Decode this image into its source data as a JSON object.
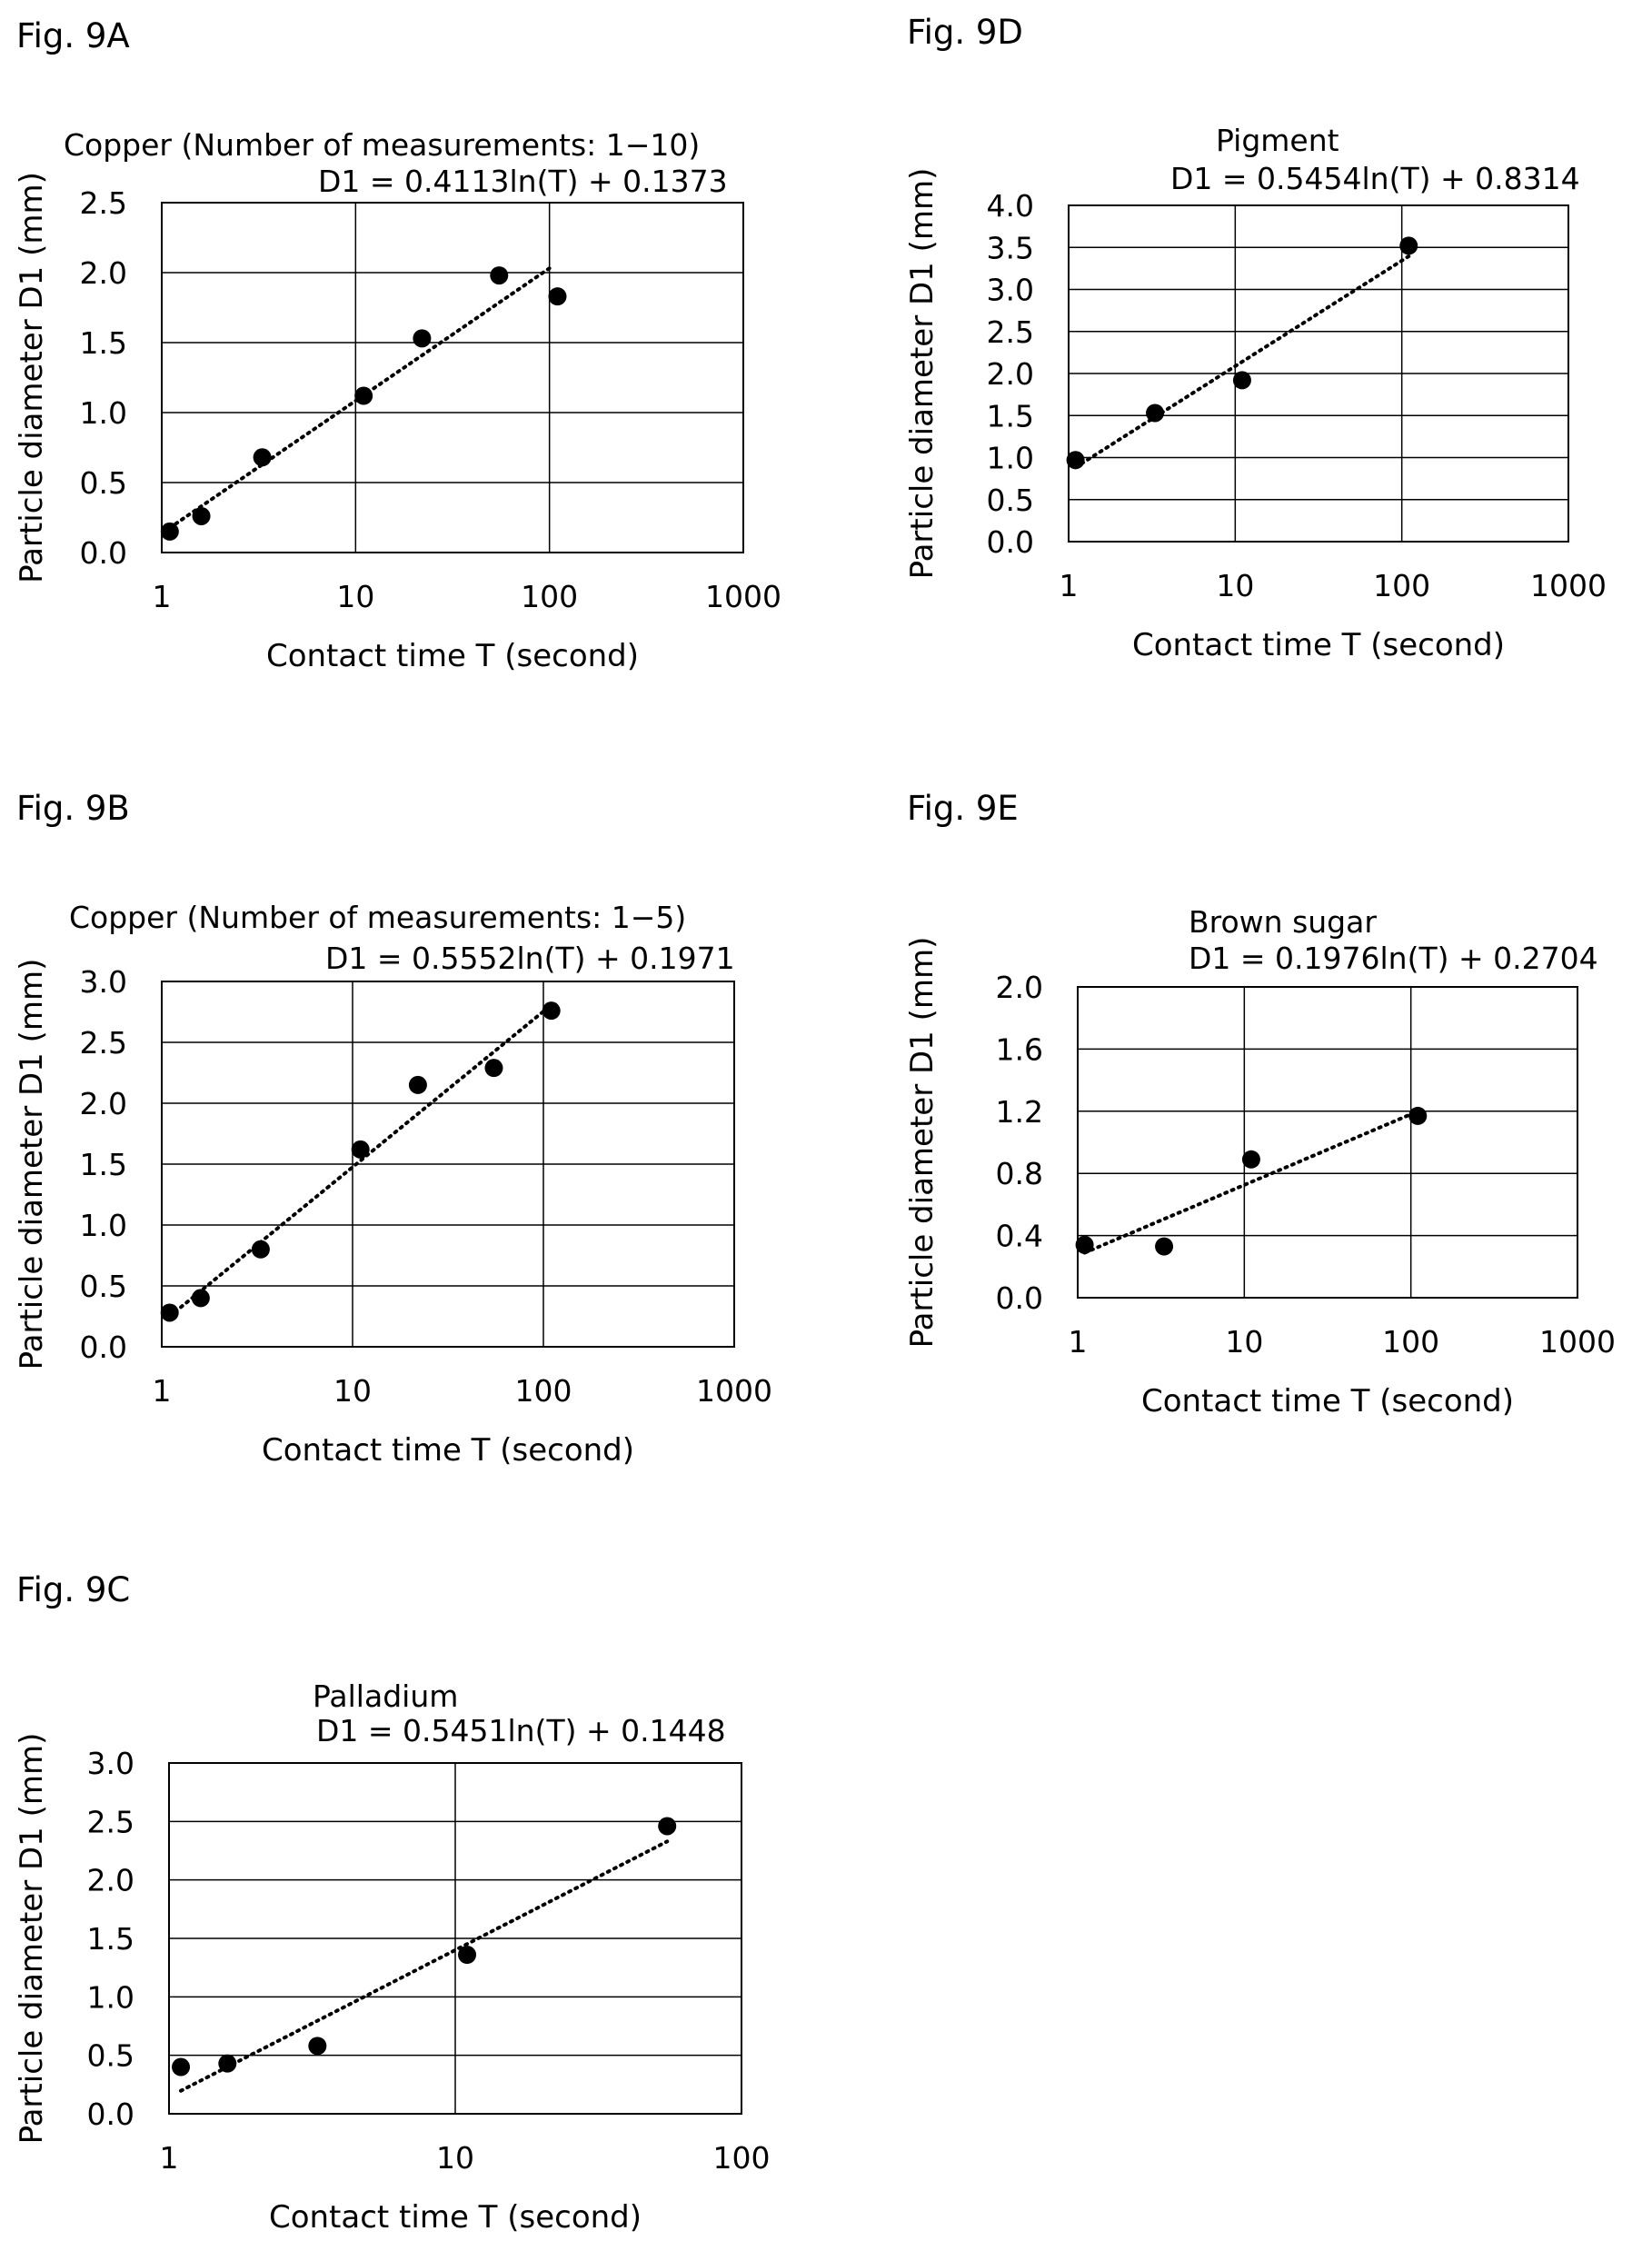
{
  "figures": [
    {
      "id": "9A",
      "fig_label": "Fig. 9A",
      "chart_data": {
        "type": "scatter",
        "x_scale": "log",
        "title": "Copper (Number of measurements: 1−10)",
        "equation": "D1 = 0.4113ln(T) + 0.1373",
        "xlabel": "Contact time T (second)",
        "ylabel": "Particle diameter D1 (mm)",
        "xlim": [
          1,
          1000
        ],
        "ylim": [
          0.0,
          2.5
        ],
        "x_ticks": [
          1,
          10,
          100,
          1000
        ],
        "x_tick_labels": [
          "1",
          "10",
          "100",
          "1000"
        ],
        "y_ticks": [
          0.0,
          0.5,
          1.0,
          1.5,
          2.0,
          2.5
        ],
        "y_tick_labels": [
          "0.0",
          "0.5",
          "1.0",
          "1.5",
          "2.0",
          "2.5"
        ],
        "grid": true,
        "trendline": {
          "type": "logarithmic",
          "a": 0.4113,
          "b": 0.1373,
          "x_start": 1.1,
          "x_end": 100,
          "style": "dotted"
        },
        "series": [
          {
            "x": [
              1.1,
              1.6,
              3.3,
              11,
              22,
              55,
              110
            ],
            "y": [
              0.15,
              0.26,
              0.68,
              1.12,
              1.53,
              1.98,
              1.83
            ]
          }
        ]
      }
    },
    {
      "id": "9B",
      "fig_label": "Fig. 9B",
      "chart_data": {
        "type": "scatter",
        "x_scale": "log",
        "title": "Copper (Number of measurements: 1−5)",
        "equation": "D1 = 0.5552ln(T) + 0.1971",
        "xlabel": "Contact time T (second)",
        "ylabel": "Particle diameter D1 (mm)",
        "xlim": [
          1,
          1000
        ],
        "ylim": [
          0.0,
          3.0
        ],
        "x_ticks": [
          1,
          10,
          100,
          1000
        ],
        "x_tick_labels": [
          "1",
          "10",
          "100",
          "1000"
        ],
        "y_ticks": [
          0.0,
          0.5,
          1.0,
          1.5,
          2.0,
          2.5,
          3.0
        ],
        "y_tick_labels": [
          "0.0",
          "0.5",
          "1.0",
          "1.5",
          "2.0",
          "2.5",
          "3.0"
        ],
        "grid": true,
        "trendline": {
          "type": "logarithmic",
          "a": 0.5552,
          "b": 0.1971,
          "x_start": 1.1,
          "x_end": 110,
          "style": "dotted"
        },
        "series": [
          {
            "x": [
              1.1,
              1.6,
              3.3,
              11,
              22,
              55,
              110
            ],
            "y": [
              0.28,
              0.4,
              0.8,
              1.62,
              2.15,
              2.29,
              2.76
            ]
          }
        ]
      }
    },
    {
      "id": "9C",
      "fig_label": "Fig. 9C",
      "chart_data": {
        "type": "scatter",
        "x_scale": "log",
        "title": "Palladium",
        "equation": "D1 = 0.5451ln(T) + 0.1448",
        "xlabel": "Contact time T (second)",
        "ylabel": "Particle diameter D1 (mm)",
        "xlim": [
          1,
          100
        ],
        "ylim": [
          0.0,
          3.0
        ],
        "x_ticks": [
          1,
          10,
          100
        ],
        "x_tick_labels": [
          "1",
          "10",
          "100"
        ],
        "y_ticks": [
          0.0,
          0.5,
          1.0,
          1.5,
          2.0,
          2.5,
          3.0
        ],
        "y_tick_labels": [
          "0.0",
          "0.5",
          "1.0",
          "1.5",
          "2.0",
          "2.5",
          "3.0"
        ],
        "grid": true,
        "trendline": {
          "type": "logarithmic",
          "a": 0.5451,
          "b": 0.1448,
          "x_start": 1.1,
          "x_end": 55,
          "style": "dotted"
        },
        "series": [
          {
            "x": [
              1.1,
              1.6,
              3.3,
              11,
              55
            ],
            "y": [
              0.4,
              0.43,
              0.58,
              1.36,
              2.46
            ]
          }
        ]
      }
    },
    {
      "id": "9D",
      "fig_label": "Fig. 9D",
      "chart_data": {
        "type": "scatter",
        "x_scale": "log",
        "title": "Pigment",
        "equation": "D1 = 0.5454ln(T) + 0.8314",
        "xlabel": "Contact time T (second)",
        "ylabel": "Particle diameter D1 (mm)",
        "xlim": [
          1,
          1000
        ],
        "ylim": [
          0.0,
          4.0
        ],
        "x_ticks": [
          1,
          10,
          100,
          1000
        ],
        "x_tick_labels": [
          "1",
          "10",
          "100",
          "1000"
        ],
        "y_ticks": [
          0.0,
          0.5,
          1.0,
          1.5,
          2.0,
          2.5,
          3.0,
          3.5,
          4.0
        ],
        "y_tick_labels": [
          "0.0",
          "0.5",
          "1.0",
          "1.5",
          "2.0",
          "2.5",
          "3.0",
          "3.5",
          "4.0"
        ],
        "grid": true,
        "trendline": {
          "type": "logarithmic",
          "a": 0.5454,
          "b": 0.8314,
          "x_start": 1.1,
          "x_end": 110,
          "style": "dotted"
        },
        "series": [
          {
            "x": [
              1.1,
              3.3,
              11,
              110
            ],
            "y": [
              0.97,
              1.53,
              1.92,
              3.52
            ]
          }
        ]
      }
    },
    {
      "id": "9E",
      "fig_label": "Fig. 9E",
      "chart_data": {
        "type": "scatter",
        "x_scale": "log",
        "title": "Brown sugar",
        "equation": "D1 = 0.1976ln(T) + 0.2704",
        "xlabel": "Contact time T (second)",
        "ylabel": "Particle diameter D1 (mm)",
        "xlim": [
          1,
          1000
        ],
        "ylim": [
          0.0,
          2.0
        ],
        "x_ticks": [
          1,
          10,
          100,
          1000
        ],
        "x_tick_labels": [
          "1",
          "10",
          "100",
          "1000"
        ],
        "y_ticks": [
          0.0,
          0.4,
          0.8,
          1.2,
          1.6,
          2.0
        ],
        "y_tick_labels": [
          "0.0",
          "0.4",
          "0.8",
          "1.2",
          "1.6",
          "2.0"
        ],
        "grid": true,
        "trendline": {
          "type": "logarithmic",
          "a": 0.1976,
          "b": 0.2704,
          "x_start": 1.1,
          "x_end": 110,
          "style": "dotted"
        },
        "series": [
          {
            "x": [
              1.1,
              3.3,
              11,
              110
            ],
            "y": [
              0.34,
              0.33,
              0.89,
              1.17
            ]
          }
        ]
      }
    }
  ]
}
